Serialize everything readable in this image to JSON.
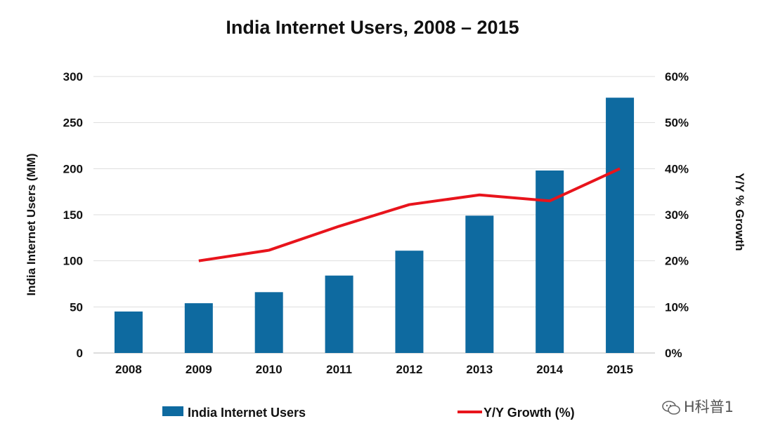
{
  "chart_data": {
    "type": "bar",
    "title": "India Internet Users, 2008 – 2015",
    "categories": [
      "2008",
      "2009",
      "2010",
      "2011",
      "2012",
      "2013",
      "2014",
      "2015"
    ],
    "ylabel": "India Internet Users (MM)",
    "ylabel_right": "Y/Y % Growth",
    "ylim": [
      0,
      300
    ],
    "y_ticks": [
      "0",
      "50",
      "100",
      "150",
      "200",
      "250",
      "300"
    ],
    "ylim_right": [
      0,
      60
    ],
    "y_ticks_right": [
      "0%",
      "10%",
      "20%",
      "30%",
      "40%",
      "50%",
      "60%"
    ],
    "grid": true,
    "legend_position": "bottom",
    "series": [
      {
        "name": "India Internet Users",
        "type": "bar",
        "axis": "left",
        "color": "#0e6aa0",
        "values": [
          45,
          54,
          66,
          84,
          111,
          149,
          198,
          277
        ]
      },
      {
        "name": "Y/Y Growth (%)",
        "type": "line",
        "axis": "right",
        "color": "#e8141c",
        "values": [
          null,
          20,
          22.3,
          27.5,
          32.2,
          34.3,
          33,
          40
        ]
      }
    ]
  },
  "watermark": {
    "icon": "wechat-icon",
    "text": "H科普1"
  }
}
